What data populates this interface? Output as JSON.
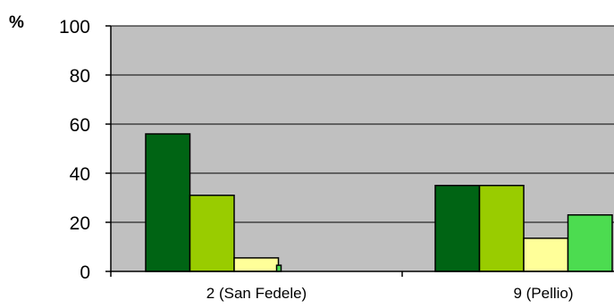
{
  "chart_data": {
    "type": "bar",
    "title": "",
    "xlabel": "",
    "ylabel": "%",
    "ylim": [
      0,
      100
    ],
    "yticks": [
      "0",
      "20",
      "40",
      "60",
      "80",
      "100"
    ],
    "grid": true,
    "categories": [
      "2 (San Fedele)",
      "9 (Pellio)"
    ],
    "series": [
      {
        "values": [
          56,
          35
        ],
        "color": "#006414"
      },
      {
        "values": [
          31,
          35
        ],
        "color": "#99cc00"
      },
      {
        "values": [
          5.5,
          13.5
        ],
        "color": "#ffff99"
      },
      {
        "values": [
          2.5,
          23
        ],
        "color": "#4cdc50"
      }
    ],
    "plot_background": "#c0c0c0"
  }
}
